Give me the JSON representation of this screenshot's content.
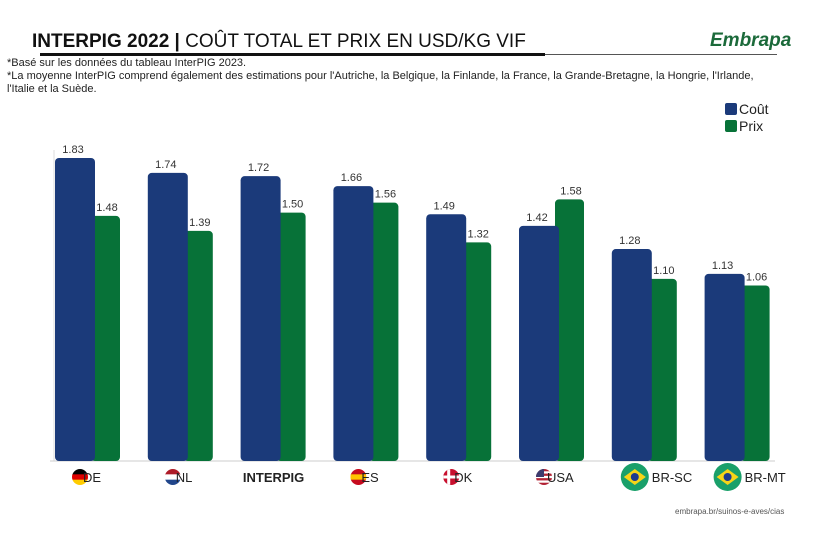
{
  "header": {
    "title_bold": "INTERPIG 2022 |",
    "title_rest": " COÛT TOTAL ET PRIX EN USD/KG VIF",
    "logo": "Embrapa"
  },
  "notes": [
    "*Basé sur les données du tableau InterPIG 2023.",
    "*La moyenne InterPIG comprend également des estimations pour l'Autriche, la Belgique, la Finlande, la France, la Grande-Bretagne, la Hongrie, l'Irlande, l'Italie et la Suède."
  ],
  "source": "embrapa.br/suinos-e-aves/cias",
  "chart_data": {
    "type": "bar",
    "title": "INTERPIG 2022 | COÛT TOTAL ET PRIX EN USD/KG VIF",
    "categories": [
      "DE",
      "NL",
      "INTERPIG",
      "ES",
      "DK",
      "USA",
      "BR-SC",
      "BR-MT"
    ],
    "category_icons": [
      "flag-germany",
      "flag-netherlands",
      "",
      "flag-spain",
      "flag-denmark",
      "flag-usa",
      "flag-brazil",
      "flag-brazil"
    ],
    "series": [
      {
        "name": "Coût",
        "color": "#1b3a7a",
        "values": [
          1.83,
          1.74,
          1.72,
          1.66,
          1.49,
          1.42,
          1.28,
          1.13
        ]
      },
      {
        "name": "Prix",
        "color": "#077238",
        "values": [
          1.48,
          1.39,
          1.5,
          1.56,
          1.32,
          1.58,
          1.1,
          1.06
        ]
      }
    ],
    "ylim": [
      0,
      1.85
    ],
    "legend": "top-right",
    "grid": false
  }
}
